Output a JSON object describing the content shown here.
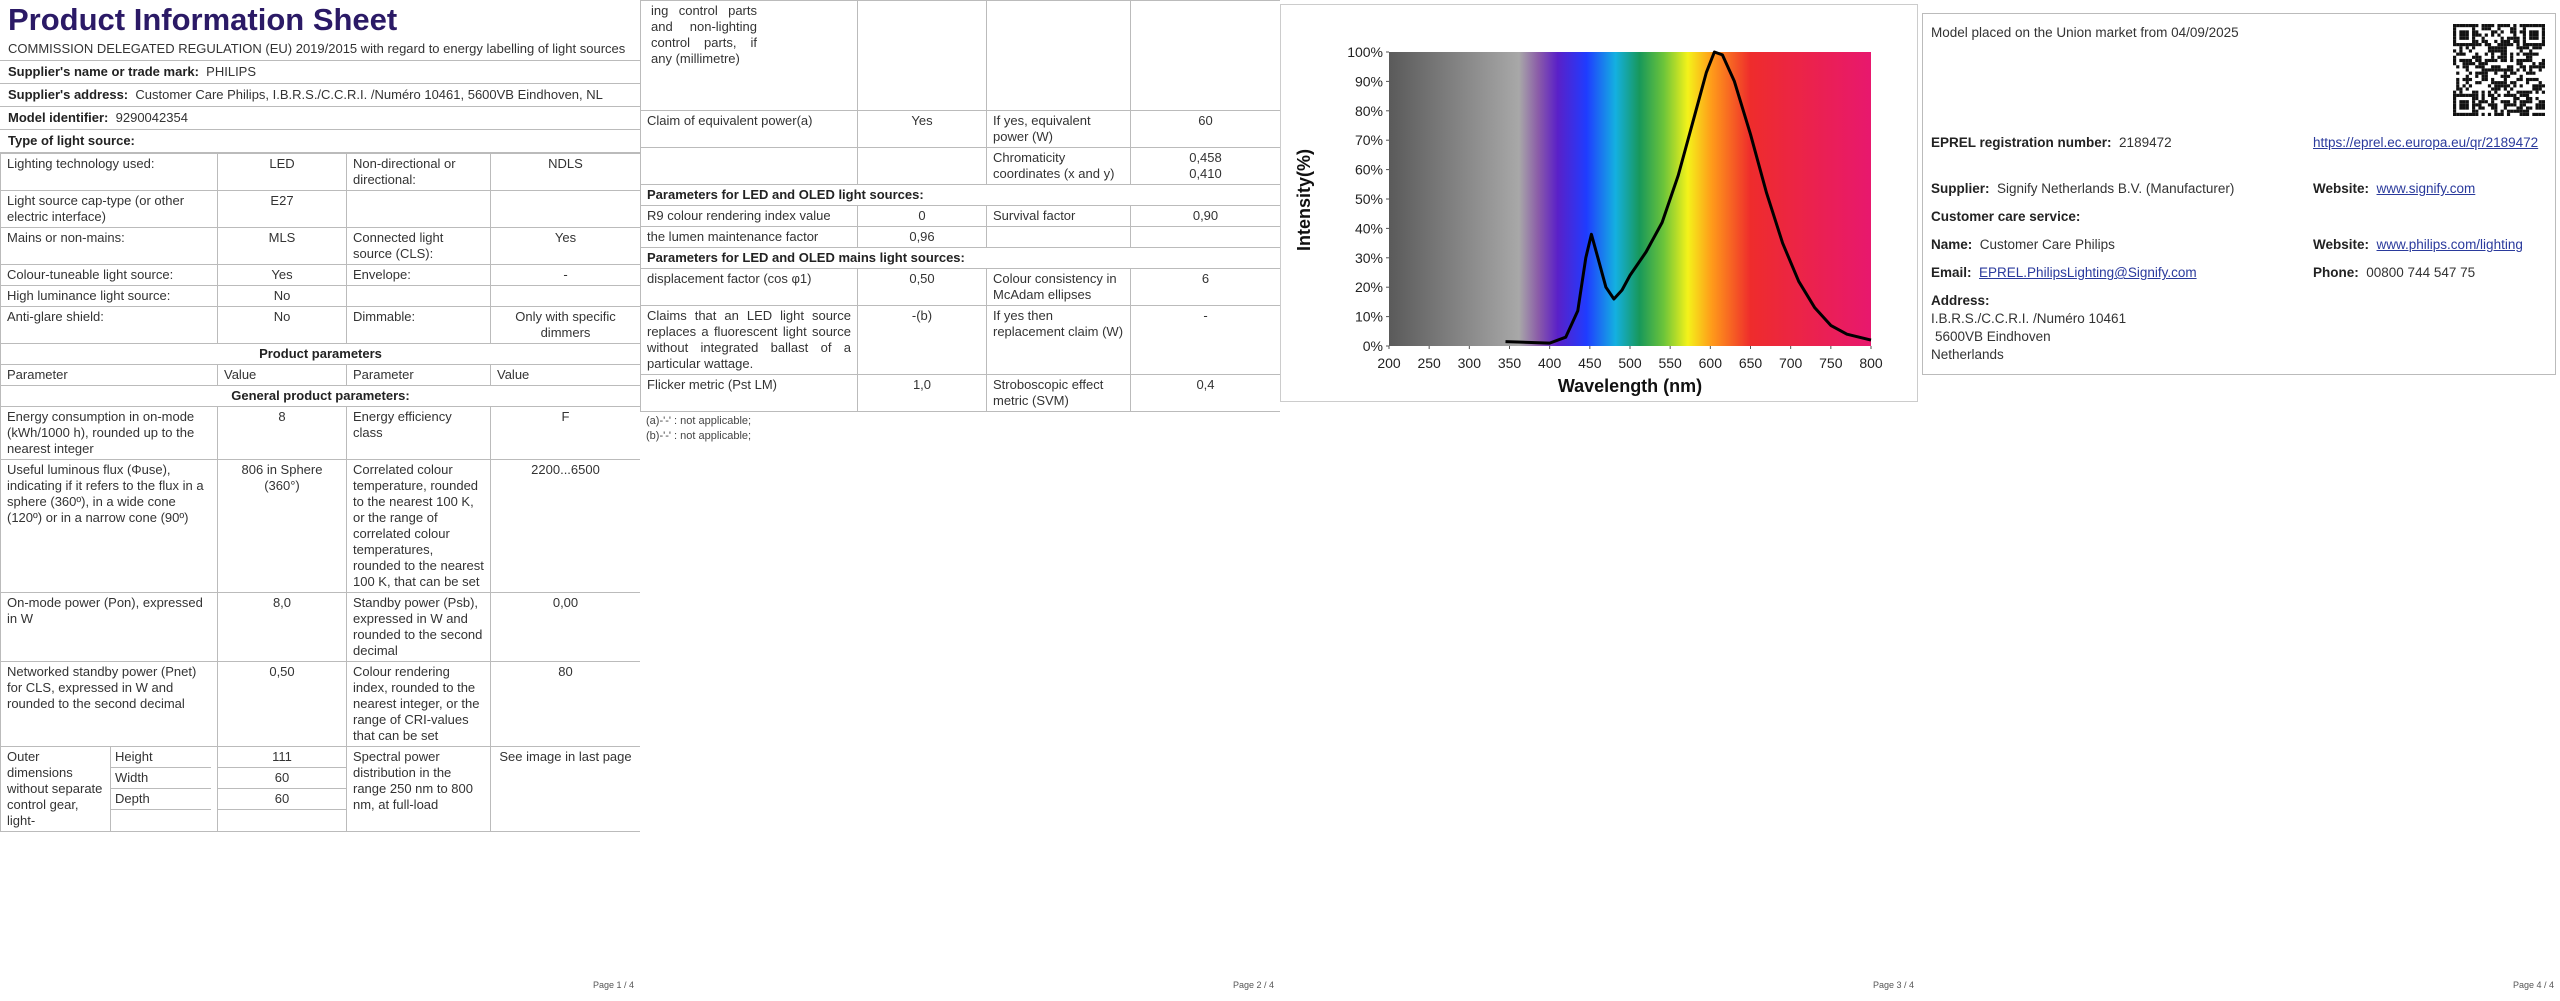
{
  "pages": [
    {
      "title": "Product Information Sheet",
      "regulation": "COMMISSION DELEGATED REGULATION (EU) 2019/2015 with regard to energy labelling of light sources",
      "supplier_label": "Supplier's name or trade mark:",
      "supplier": "PHILIPS",
      "address_label": "Supplier's address:",
      "address": "Customer Care Philips, I.B.R.S./C.C.R.I. /Numéro 10461, 5600VB Eindhoven, NL",
      "model_label": "Model identifier:",
      "model": "9290042354",
      "type_heading": "Type of light source:",
      "type_rows": [
        [
          "Lighting technology used:",
          "LED",
          "Non-directional or directional:",
          "NDLS"
        ],
        [
          "Light source cap-type (or other electric interface)",
          "E27"
        ],
        [
          "Mains or non-mains:",
          "MLS",
          "Connected light source (CLS):",
          "Yes"
        ],
        [
          "Colour-tuneable light source:",
          "Yes",
          "Envelope:",
          "-"
        ],
        [
          "High luminance light source:",
          "No"
        ],
        [
          "Anti-glare shield:",
          "No",
          "Dimmable:",
          "Only with specific dimmers"
        ]
      ],
      "params_heading": "Product parameters",
      "params_header": [
        "Parameter",
        "Value",
        "Parameter",
        "Value"
      ],
      "general_heading": "General product parameters:",
      "general_rows": [
        [
          "Energy consumption in on-mode (kWh/1000 h), rounded up to the nearest integer",
          "8",
          "Energy efficiency class",
          "F"
        ],
        [
          "Useful luminous flux (Φuse), indicating if it refers to the flux in a sphere (360º), in a wide cone (120º) or in a narrow cone (90º)",
          "806 in Sphere (360°)",
          "Correlated colour temperature, rounded to the nearest 100 K, or the range of correlated colour temperatures, rounded to the nearest 100 K, that can be set",
          "2200...6500"
        ],
        [
          "On-mode power (Pon), expressed in W",
          "8,0",
          "Standby power (Psb), expressed in W and rounded to the second decimal",
          "0,00"
        ],
        [
          "Networked standby power (Pnet) for CLS, expressed in W and rounded to the second decimal",
          "0,50",
          "Colour rendering index, rounded to the nearest integer, or the range of CRI-values that can be set",
          "80"
        ]
      ],
      "dimensions_label": "Outer dimensions without separate control gear, light-",
      "dimensions": [
        [
          "Height",
          "111"
        ],
        [
          "Width",
          "60"
        ],
        [
          "Depth",
          "60"
        ]
      ],
      "spd": [
        "Spectral power distribution in the range 250 nm to 800 nm, at full-load",
        "See image in last page"
      ],
      "footer": "Page 1 / 4"
    },
    {
      "continued": "ing control parts and non-lighting control parts, if any (millimetre)",
      "claim_row": [
        "Claim of equivalent power(a)",
        "Yes",
        "If yes, equivalent power (W)",
        "60"
      ],
      "chromaticity_label": "Chromaticity coordinates (x and y)",
      "chromaticity": [
        "0,458",
        "0,410"
      ],
      "led_heading": "Parameters for LED and OLED light sources:",
      "led_rows": [
        [
          "R9 colour rendering index value",
          "0",
          "Survival factor",
          "0,90"
        ],
        [
          "the lumen maintenance factor",
          "0,96"
        ]
      ],
      "mains_heading": "Parameters for LED and OLED mains light sources:",
      "mains_rows": [
        [
          "displacement factor (cos φ1)",
          "0,50",
          "Colour consistency in McAdam ellipses",
          "6"
        ],
        [
          "Claims that an LED light source replaces a fluorescent light source without integrated ballast of a particular wattage.",
          "-(b)",
          "If yes then replacement claim (W)",
          "-"
        ],
        [
          "Flicker metric (Pst LM)",
          "1,0",
          "Stroboscopic effect metric (SVM)",
          "0,4"
        ]
      ],
      "footnotes": [
        "(a)-'-' : not applicable;",
        "(b)-'-' : not applicable;"
      ],
      "footer": "Page 2 / 4"
    },
    {
      "chart": {
        "type": "line",
        "x_label": "Wavelength (nm)",
        "y_label": "Intensity(%)",
        "xlim": [
          200,
          800
        ],
        "ylim": [
          0,
          100
        ],
        "xticks": [
          200,
          250,
          300,
          350,
          400,
          450,
          500,
          550,
          600,
          650,
          700,
          750,
          800
        ],
        "yticks": [
          {
            "value": 0,
            "label": "0%"
          },
          {
            "value": 10,
            "label": "10%"
          },
          {
            "value": 20,
            "label": "20%"
          },
          {
            "value": 30,
            "label": "30%"
          },
          {
            "value": 40,
            "label": "40%"
          },
          {
            "value": 50,
            "label": "50%"
          },
          {
            "value": 60,
            "label": "60%"
          },
          {
            "value": 70,
            "label": "70%"
          },
          {
            "value": 80,
            "label": "80%"
          },
          {
            "value": 90,
            "label": "90%"
          },
          {
            "value": 100,
            "label": "100%"
          }
        ],
        "x": [
          345,
          400,
          420,
          435,
          445,
          452,
          460,
          470,
          480,
          490,
          500,
          520,
          540,
          560,
          580,
          595,
          605,
          615,
          630,
          650,
          670,
          690,
          710,
          730,
          750,
          770,
          800
        ],
        "values": [
          1.5,
          1,
          3,
          12,
          30,
          38,
          30,
          20,
          16,
          19,
          24,
          32,
          42,
          58,
          78,
          93,
          100,
          99,
          90,
          72,
          52,
          35,
          22,
          13,
          7,
          4,
          2
        ],
        "color": "#000000"
      },
      "footer": "Page 3 / 4"
    },
    {
      "placed": "Model placed on the Union market from 04/09/2025",
      "eprel_label": "EPREL registration number:",
      "eprel": "2189472",
      "eprel_url": "https://eprel.ec.europa.eu/qr/2189472",
      "supplier_label": "Supplier:",
      "supplier": "Signify Netherlands B.V. (Manufacturer)",
      "website_label": "Website:",
      "website": "www.signify.com",
      "care": "Customer care service:",
      "name_label": "Name:",
      "name": "Customer Care Philips",
      "website2_label": "Website:",
      "website2": "www.philips.com/lighting",
      "email_label": "Email:",
      "email": "EPREL.PhilipsLighting@Signify.com",
      "phone_label": "Phone:",
      "phone": "00800 744 547 75",
      "address_label": "Address:",
      "address": [
        "I.B.R.S./C.C.R.I. /Numéro 10461",
        "5600VB Eindhoven",
        "Netherlands"
      ],
      "footer": "Page 4 / 4"
    }
  ]
}
